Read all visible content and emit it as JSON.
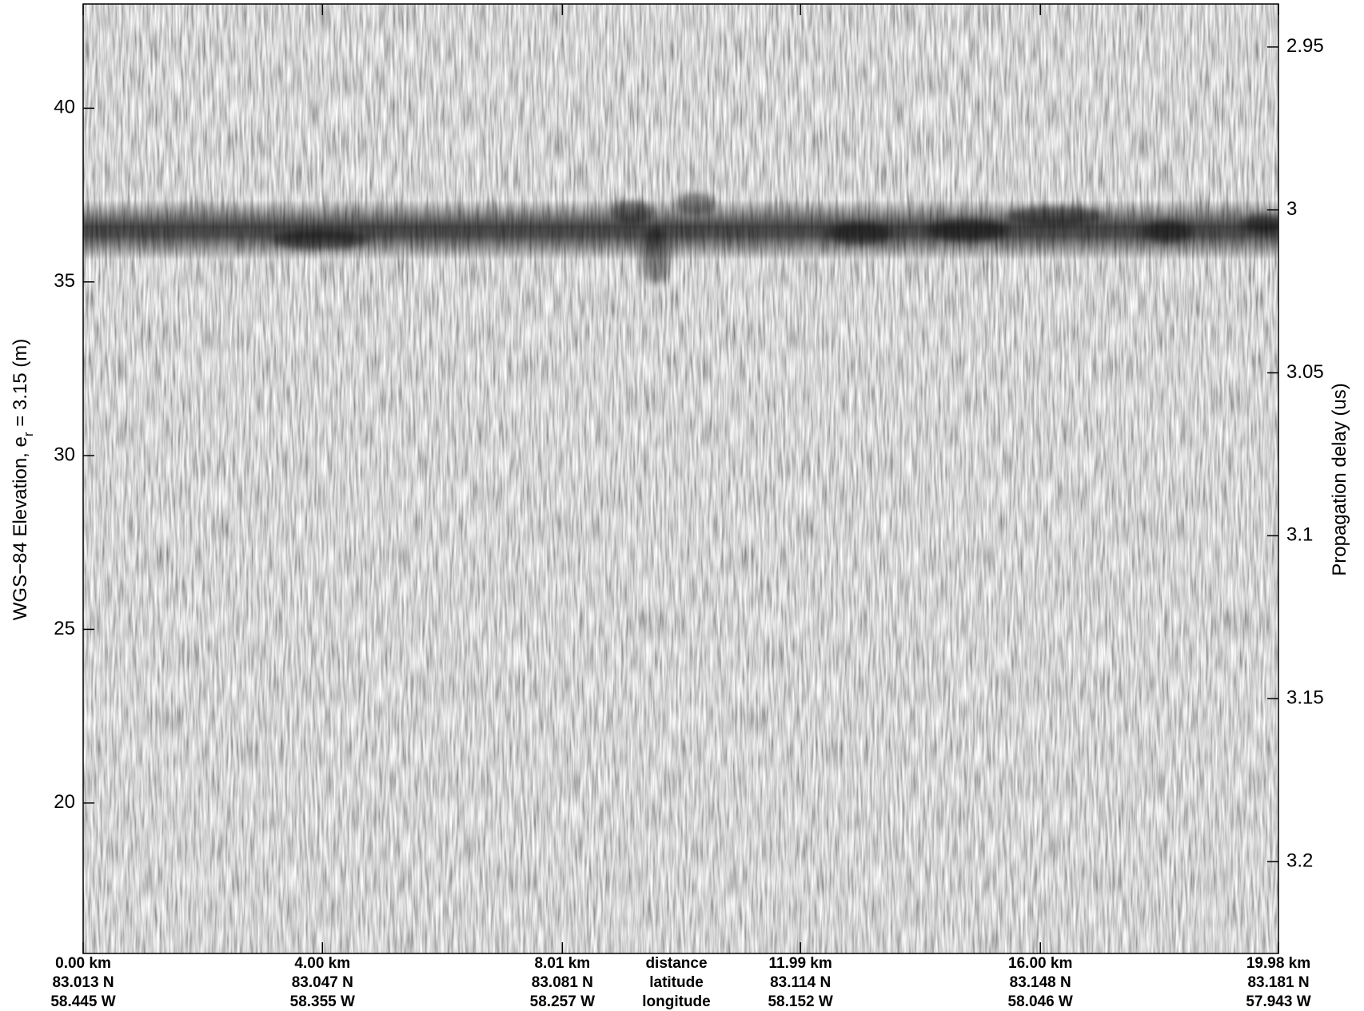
{
  "chart_data": {
    "type": "echogram",
    "y_label": {
      "text": "WGS−84 Elevation, e",
      "subscript": "r",
      "suffix": " = 3.15 (m)"
    },
    "y2_label": "Propagation delay (us)",
    "ylim": [
      15.67,
      43.0
    ],
    "yticks": [
      20,
      25,
      30,
      35,
      40
    ],
    "y2lim": [
      2.9368,
      3.2282
    ],
    "y2_inverted": true,
    "y2ticks": [
      2.95,
      3,
      3.05,
      3.1,
      3.15,
      3.2
    ],
    "xlim": [
      0,
      19.98
    ],
    "xticks": [
      {
        "value": 0,
        "label": "0.00 km"
      },
      {
        "value": 4.0,
        "label": "4.00 km"
      },
      {
        "value": 8.01,
        "label": "8.01 km"
      },
      {
        "value": 11.99,
        "label": "11.99 km"
      },
      {
        "value": 16.0,
        "label": "16.00 km"
      },
      {
        "value": 19.98,
        "label": "19.98 km"
      }
    ],
    "xtick_latitudes": [
      "83.013 N",
      "83.047 N",
      "83.081 N",
      "83.114 N",
      "83.148 N",
      "83.181 N"
    ],
    "xtick_longitudes": [
      "58.445 W",
      "58.355 W",
      "58.257 W",
      "58.152 W",
      "58.046 W",
      "57.943 W"
    ],
    "xtick_row_names": [
      "distance",
      "latitude",
      "longitude"
    ]
  }
}
